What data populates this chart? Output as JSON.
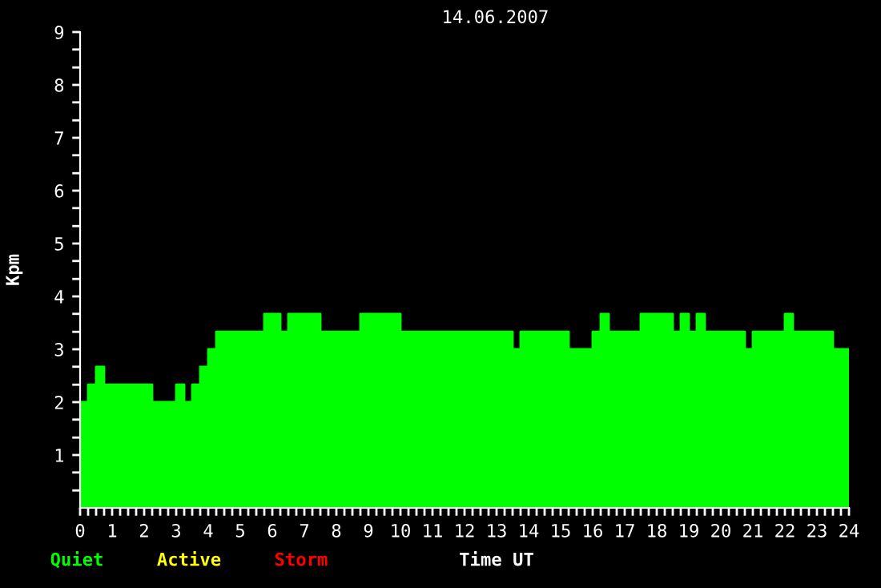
{
  "chart_data": {
    "type": "area",
    "title": "14.06.2007",
    "xlabel": "Time UT",
    "ylabel": "Kpm",
    "annotations": [
      "Quiet",
      "Active",
      "Storm"
    ],
    "x": [
      0,
      0.25,
      0.25,
      0.5,
      0.5,
      0.75,
      0.75,
      2.25,
      2.25,
      3,
      3,
      3.25,
      3.25,
      3.5,
      3.5,
      3.75,
      3.75,
      4,
      4,
      4.25,
      4.25,
      5.75,
      5.75,
      6.25,
      6.25,
      6.5,
      6.5,
      7.5,
      7.5,
      8.75,
      8.75,
      10,
      10,
      13.5,
      13.5,
      13.75,
      13.75,
      15.25,
      15.25,
      16,
      16,
      16.25,
      16.25,
      16.5,
      16.5,
      17.5,
      17.5,
      18.5,
      18.5,
      18.75,
      18.75,
      19,
      19,
      19.25,
      19.25,
      19.5,
      19.5,
      20.75,
      20.75,
      21,
      21,
      22,
      22,
      22.25,
      22.25,
      23.5,
      23.5,
      24
    ],
    "series": [
      {
        "color": "#00ff00",
        "values": [
          2,
          2,
          2.33,
          2.33,
          2.67,
          2.67,
          2.33,
          2.33,
          2,
          2,
          2.33,
          2.33,
          2,
          2,
          2.33,
          2.33,
          2.67,
          2.67,
          3,
          3,
          3.33,
          3.33,
          3.67,
          3.67,
          3.33,
          3.33,
          3.67,
          3.67,
          3.33,
          3.33,
          3.67,
          3.67,
          3.33,
          3.33,
          3,
          3,
          3.33,
          3.33,
          3,
          3,
          3.33,
          3.33,
          3.67,
          3.67,
          3.33,
          3.33,
          3.67,
          3.67,
          3.33,
          3.33,
          3.67,
          3.67,
          3.33,
          3.33,
          3.67,
          3.67,
          3.33,
          3.33,
          3,
          3,
          3.33,
          3.33,
          3.67,
          3.67,
          3.33,
          3.33,
          3,
          3
        ]
      }
    ],
    "xlim": [
      0,
      24
    ],
    "ylim": [
      0,
      9
    ],
    "xticks": [
      0,
      {
        "value": 0.25,
        "label": null
      },
      {
        "value": 0.5,
        "label": null
      },
      {
        "value": 0.75,
        "label": null
      },
      1,
      {
        "value": 1.25,
        "label": null
      },
      {
        "value": 1.5,
        "label": null
      },
      {
        "value": 1.75,
        "label": null
      },
      2,
      {
        "value": 2.25,
        "label": null
      },
      {
        "value": 2.5,
        "label": null
      },
      {
        "value": 2.75,
        "label": null
      },
      3,
      {
        "value": 3.25,
        "label": null
      },
      {
        "value": 3.5,
        "label": null
      },
      {
        "value": 3.75,
        "label": null
      },
      4,
      {
        "value": 4.25,
        "label": null
      },
      {
        "value": 4.5,
        "label": null
      },
      {
        "value": 4.75,
        "label": null
      },
      5,
      {
        "value": 5.25,
        "label": null
      },
      {
        "value": 5.5,
        "label": null
      },
      {
        "value": 5.75,
        "label": null
      },
      6,
      {
        "value": 6.25,
        "label": null
      },
      {
        "value": 6.5,
        "label": null
      },
      {
        "value": 6.75,
        "label": null
      },
      7,
      {
        "value": 7.25,
        "label": null
      },
      {
        "value": 7.5,
        "label": null
      },
      {
        "value": 7.75,
        "label": null
      },
      8,
      {
        "value": 8.25,
        "label": null
      },
      {
        "value": 8.5,
        "label": null
      },
      {
        "value": 8.75,
        "label": null
      },
      9,
      {
        "value": 9.25,
        "label": null
      },
      {
        "value": 9.5,
        "label": null
      },
      {
        "value": 9.75,
        "label": null
      },
      10,
      {
        "value": 10.25,
        "label": null
      },
      {
        "value": 10.5,
        "label": null
      },
      {
        "value": 10.75,
        "label": null
      },
      11,
      {
        "value": 11.25,
        "label": null
      },
      {
        "value": 11.5,
        "label": null
      },
      {
        "value": 11.75,
        "label": null
      },
      12,
      {
        "value": 12.25,
        "label": null
      },
      {
        "value": 12.5,
        "label": null
      },
      {
        "value": 12.75,
        "label": null
      },
      13,
      {
        "value": 13.25,
        "label": null
      },
      {
        "value": 13.5,
        "label": null
      },
      {
        "value": 13.75,
        "label": null
      },
      14,
      {
        "value": 14.25,
        "label": null
      },
      {
        "value": 14.5,
        "label": null
      },
      {
        "value": 14.75,
        "label": null
      },
      15,
      {
        "value": 15.25,
        "label": null
      },
      {
        "value": 15.5,
        "label": null
      },
      {
        "value": 15.75,
        "label": null
      },
      16,
      {
        "value": 16.25,
        "label": null
      },
      {
        "value": 16.5,
        "label": null
      },
      {
        "value": 16.75,
        "label": null
      },
      17,
      {
        "value": 17.25,
        "label": null
      },
      {
        "value": 17.5,
        "label": null
      },
      {
        "value": 17.75,
        "label": null
      },
      18,
      {
        "value": 18.25,
        "label": null
      },
      {
        "value": 18.5,
        "label": null
      },
      {
        "value": 18.75,
        "label": null
      },
      19,
      {
        "value": 19.25,
        "label": null
      },
      {
        "value": 19.5,
        "label": null
      },
      {
        "value": 19.75,
        "label": null
      },
      20,
      {
        "value": 20.25,
        "label": null
      },
      {
        "value": 20.5,
        "label": null
      },
      {
        "value": 20.75,
        "label": null
      },
      21,
      {
        "value": 21.25,
        "label": null
      },
      {
        "value": 21.5,
        "label": null
      },
      {
        "value": 21.75,
        "label": null
      },
      22,
      {
        "value": 22.25,
        "label": null
      },
      {
        "value": 22.5,
        "label": null
      },
      {
        "value": 22.75,
        "label": null
      },
      23,
      {
        "value": 23.25,
        "label": null
      },
      {
        "value": 23.5,
        "label": null
      },
      {
        "value": 23.75,
        "label": null
      },
      24
    ],
    "yticks": [
      {
        "value": 0.33,
        "label": null
      },
      {
        "value": 0.67,
        "label": null
      },
      1,
      {
        "value": 1.33,
        "label": null
      },
      {
        "value": 1.67,
        "label": null
      },
      2,
      {
        "value": 2.33,
        "label": null
      },
      {
        "value": 2.67,
        "label": null
      },
      3,
      {
        "value": 3.33,
        "label": null
      },
      {
        "value": 3.67,
        "label": null
      },
      4,
      {
        "value": 4.33,
        "label": null
      },
      {
        "value": 4.67,
        "label": null
      },
      5,
      {
        "value": 5.33,
        "label": null
      },
      {
        "value": 5.67,
        "label": null
      },
      6,
      {
        "value": 6.33,
        "label": null
      },
      {
        "value": 6.67,
        "label": null
      },
      7,
      {
        "value": 7.33,
        "label": null
      },
      {
        "value": 7.67,
        "label": null
      },
      8,
      {
        "value": 8.33,
        "label": null
      },
      {
        "value": 8.67,
        "label": null
      },
      9
    ],
    "grid": false,
    "legend": false
  }
}
